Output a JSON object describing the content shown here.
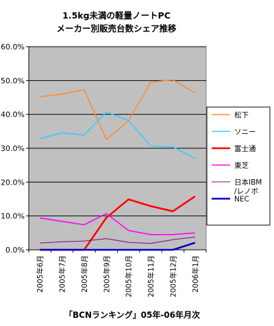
{
  "chart_data": {
    "type": "line",
    "title": "1.5kg未満の軽量ノートPC",
    "subtitle": "メーカー別販売台数シェア推移",
    "xlabel": "",
    "ylabel": "",
    "categories": [
      "2005年6月",
      "2005年7月",
      "2005年8月",
      "2005年9月",
      "2005年10月",
      "2005年11月",
      "2005年12月",
      "2006年1月"
    ],
    "yticks": [
      "0.0%",
      "10.0%",
      "20.0%",
      "30.0%",
      "40.0%",
      "50.0%",
      "60.0%"
    ],
    "ylim": [
      0,
      60
    ],
    "grid": true,
    "legend_position": "right",
    "background_color": "#c0c0c0",
    "series": [
      {
        "name": "松下",
        "color": "#ff8c2e",
        "width": 1.6,
        "values": [
          45.2,
          46.0,
          47.3,
          32.6,
          38.1,
          49.5,
          50.2,
          46.3
        ]
      },
      {
        "name": "ソニー",
        "color": "#33ccff",
        "width": 1.6,
        "values": [
          32.8,
          34.6,
          33.9,
          40.7,
          38.2,
          30.6,
          30.4,
          27.0
        ]
      },
      {
        "name": "富士通",
        "color": "#ff0000",
        "width": 2.6,
        "values": [
          0.0,
          0.0,
          0.0,
          9.5,
          14.9,
          12.9,
          11.4,
          15.8
        ]
      },
      {
        "name": "東芝",
        "color": "#ff00ff",
        "width": 1.6,
        "values": [
          9.4,
          8.4,
          7.4,
          10.7,
          5.7,
          4.5,
          4.5,
          5.0
        ]
      },
      {
        "name": "日本IBM\n/レノボ",
        "color": "#800080",
        "width": 1.0,
        "values": [
          2.0,
          2.4,
          2.6,
          3.3,
          2.2,
          1.9,
          3.0,
          3.8
        ]
      },
      {
        "name": "NEC",
        "color": "#0000cc",
        "width": 2.6,
        "values": [
          0.0,
          0.0,
          0.0,
          0.0,
          0.0,
          0.0,
          0.0,
          2.1
        ]
      }
    ],
    "footer": "「BCNランキング」05年-06年月次"
  }
}
